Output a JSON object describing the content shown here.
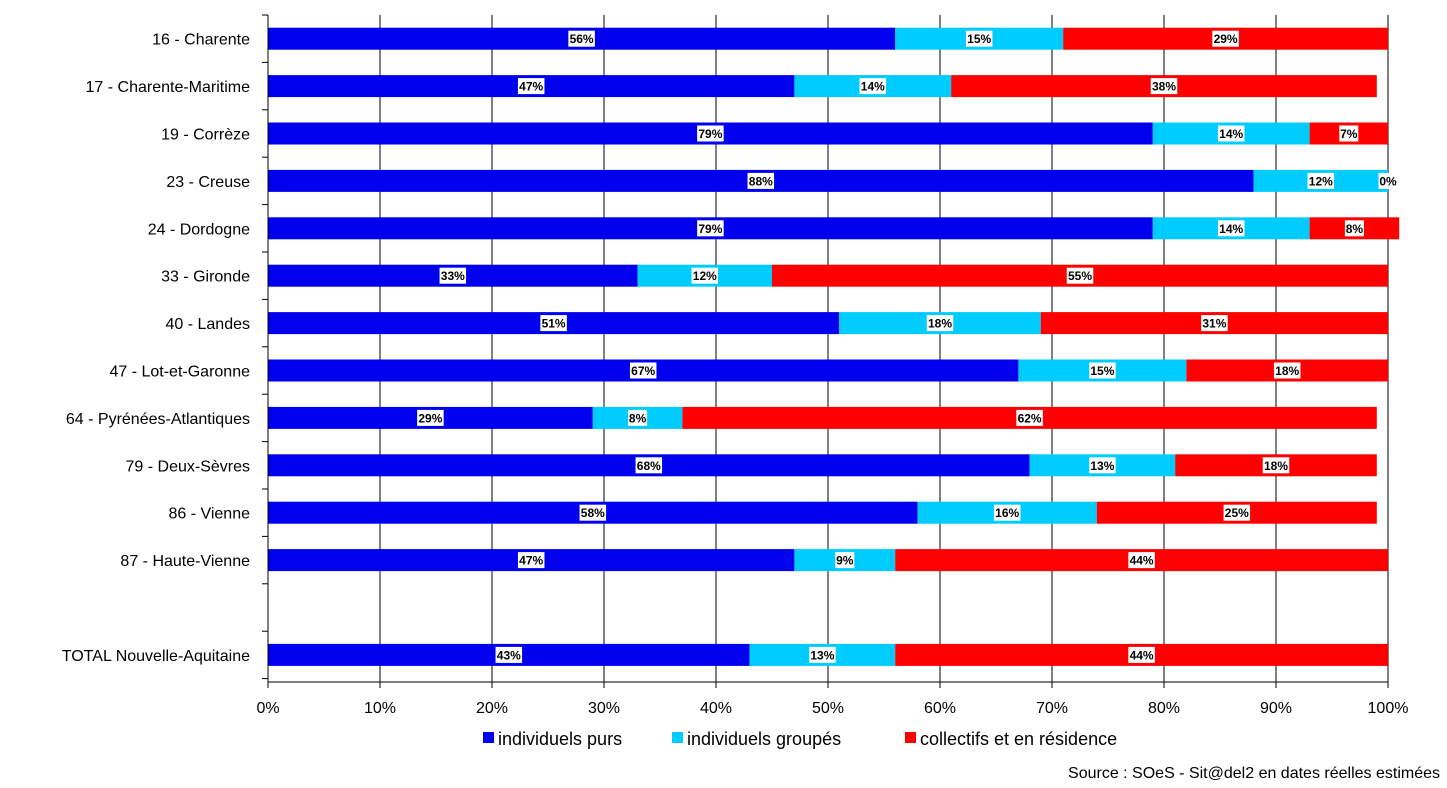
{
  "chart_data": {
    "type": "bar",
    "orientation": "horizontal",
    "stacked": true,
    "categories": [
      "16 - Charente",
      "17 - Charente-Maritime",
      "19 - Corrèze",
      "23 - Creuse",
      "24 - Dordogne",
      "33 - Gironde",
      "40 - Landes",
      "47 - Lot-et-Garonne",
      "64 - Pyrénées-Atlantiques",
      "79 - Deux-Sèvres",
      "86 - Vienne",
      "87 - Haute-Vienne",
      "",
      "TOTAL Nouvelle-Aquitaine"
    ],
    "series": [
      {
        "name": "individuels purs",
        "color": "#0000ee",
        "values": [
          56,
          47,
          79,
          88,
          79,
          33,
          51,
          67,
          29,
          68,
          58,
          47,
          null,
          43
        ],
        "labels": [
          "56%",
          "47%",
          "79%",
          "88%",
          "79%",
          "33%",
          "51%",
          "67%",
          "29%",
          "68%",
          "58%",
          "47%",
          null,
          "43%"
        ]
      },
      {
        "name": "individuels groupés",
        "color": "#00ccff",
        "values": [
          15,
          14,
          14,
          12,
          14,
          12,
          18,
          15,
          8,
          13,
          16,
          9,
          null,
          13
        ],
        "labels": [
          "15%",
          "14%",
          "14%",
          "12%",
          "14%",
          "12%",
          "18%",
          "15%",
          "8%",
          "13%",
          "16%",
          "9%",
          null,
          "13%"
        ]
      },
      {
        "name": "collectifs et en résidence",
        "color": "#ff0000",
        "values": [
          29,
          38,
          7,
          0,
          8,
          55,
          31,
          18,
          62,
          18,
          25,
          44,
          null,
          44
        ],
        "labels": [
          "29%",
          "38%",
          "7%",
          "0%",
          "8%",
          "55%",
          "31%",
          "18%",
          "62%",
          "18%",
          "25%",
          "44%",
          null,
          "44%"
        ]
      }
    ],
    "xlim": [
      0,
      100
    ],
    "x_ticks": [
      "0%",
      "10%",
      "20%",
      "30%",
      "40%",
      "50%",
      "60%",
      "70%",
      "80%",
      "90%",
      "100%"
    ],
    "grid": true,
    "legend_position": "bottom",
    "source": "Source : SOeS - Sit@del2 en dates réelles estimées"
  }
}
